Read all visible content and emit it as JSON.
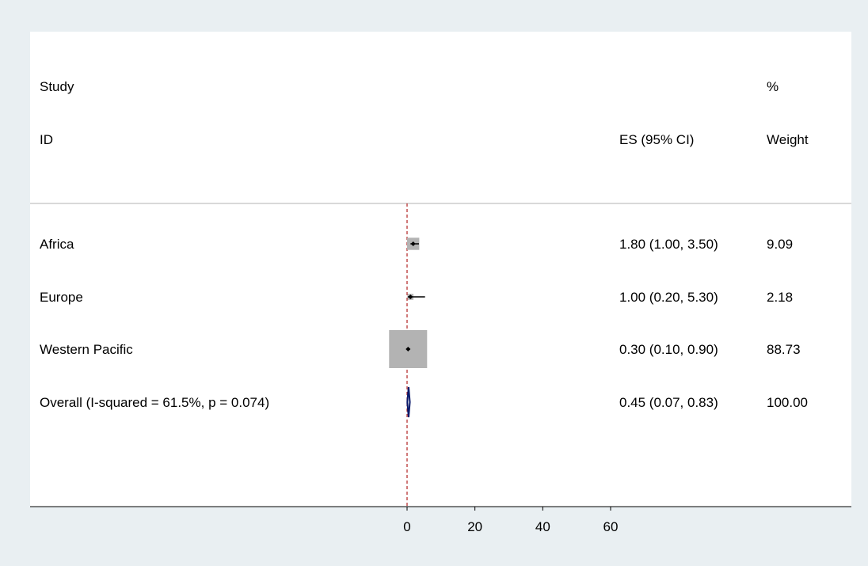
{
  "chart_data": {
    "type": "forest",
    "headers": {
      "study_line1": "Study",
      "study_line2": "ID",
      "es": "ES (95% CI)",
      "weight_line1": "%",
      "weight_line2": "Weight"
    },
    "studies": [
      {
        "label": "Africa",
        "es": 1.8,
        "lo": 1.0,
        "hi": 3.5,
        "weight": 9.09,
        "es_text": "1.80 (1.00, 3.50)",
        "weight_text": "9.09"
      },
      {
        "label": "Europe",
        "es": 1.0,
        "lo": 0.2,
        "hi": 5.3,
        "weight": 2.18,
        "es_text": "1.00 (0.20, 5.30)",
        "weight_text": "2.18"
      },
      {
        "label": "Western Pacific",
        "es": 0.3,
        "lo": 0.1,
        "hi": 0.9,
        "weight": 88.73,
        "es_text": "0.30 (0.10, 0.90)",
        "weight_text": "88.73"
      }
    ],
    "overall": {
      "label": "Overall  (I-squared = 61.5%, p = 0.074)",
      "es": 0.45,
      "lo": 0.07,
      "hi": 0.83,
      "es_text": "0.45 (0.07, 0.83)",
      "weight_text": "100.00"
    },
    "null_line": 0,
    "x_ticks": [
      0,
      20,
      40,
      60
    ],
    "x_tick_labels": [
      "0",
      "20",
      "40",
      "60"
    ],
    "xlim": [
      0,
      60
    ],
    "colors": {
      "background": "#e9eff2",
      "panel": "#ffffff",
      "box": "#b3b3b3",
      "ci_line": "#000000",
      "null_line": "#b22222",
      "diamond": "#0a1a6b"
    }
  }
}
